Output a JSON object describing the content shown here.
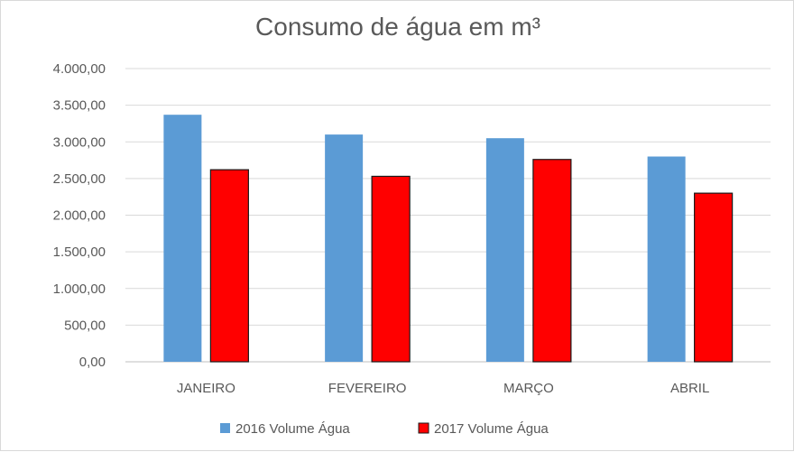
{
  "chart_data": {
    "type": "bar",
    "title": "Consumo de água em m³",
    "categories": [
      "JANEIRO",
      "FEVEREIRO",
      "MARÇO",
      "ABRIL"
    ],
    "series": [
      {
        "name": "2016 Volume Água",
        "color": "#5b9bd5",
        "values": [
          3370,
          3100,
          3050,
          2800
        ]
      },
      {
        "name": "2017 Volume Água",
        "color": "#ff0000",
        "values": [
          2620,
          2530,
          2760,
          2300
        ]
      }
    ],
    "ylim": [
      0,
      4000
    ],
    "yticks": [
      0,
      500,
      1000,
      1500,
      2000,
      2500,
      3000,
      3500,
      4000
    ],
    "ytick_labels": [
      "0,00",
      "500,00",
      "1.000,00",
      "1.500,00",
      "2.000,00",
      "2.500,00",
      "3.000,00",
      "3.500,00",
      "4.000,00"
    ],
    "xlabel": "",
    "ylabel": "",
    "grid": true,
    "legend": "bottom"
  }
}
